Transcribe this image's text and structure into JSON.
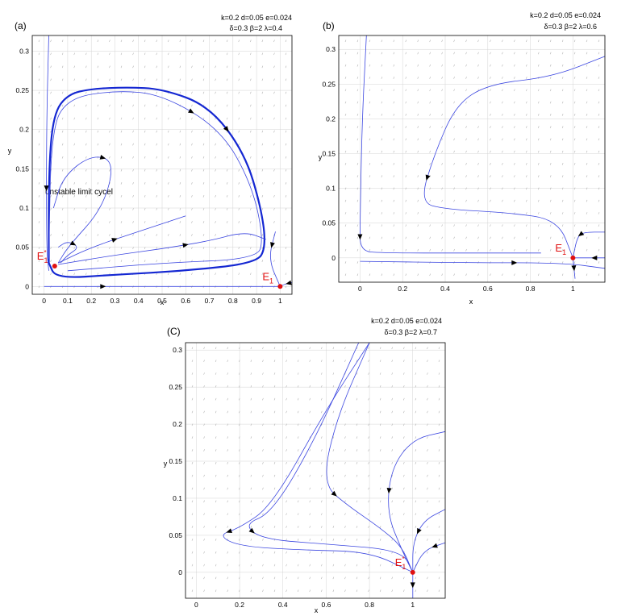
{
  "chart_data": [
    {
      "type": "line",
      "panel": "(a)",
      "params_line1": "k=0.2  d=0.05  e=0.024",
      "params_line2": "δ=0.3  β=2  λ=0.4",
      "xlabel": "x",
      "ylabel": "y",
      "xlim": [
        -0.05,
        1.05
      ],
      "ylim": [
        -0.01,
        0.32
      ],
      "xticks": [
        "0",
        "0.1",
        "0.2",
        "0.3",
        "0.4",
        "0.5",
        "0.6",
        "0.7",
        "0.8",
        "0.9",
        "1"
      ],
      "yticks": [
        "0",
        "0.05",
        "0.1",
        "0.15",
        "0.2",
        "0.25",
        "0.3"
      ],
      "annotation": "unstable limit cycel",
      "equilibria": [
        {
          "label": "E",
          "sub": "1",
          "sup": "",
          "x": 1.0,
          "y": 0.0
        },
        {
          "label": "E",
          "sub": "1",
          "sup": "*",
          "x": 0.045,
          "y": 0.026
        }
      ],
      "series": [
        {
          "name": "outer-limit-cycle",
          "bold": true,
          "points": [
            [
              0.02,
              0.03
            ],
            [
              0.02,
              0.15
            ],
            [
              0.04,
              0.22
            ],
            [
              0.1,
              0.245
            ],
            [
              0.2,
              0.252
            ],
            [
              0.35,
              0.254
            ],
            [
              0.5,
              0.252
            ],
            [
              0.7,
              0.23
            ],
            [
              0.85,
              0.17
            ],
            [
              0.92,
              0.1
            ],
            [
              0.94,
              0.05
            ],
            [
              0.9,
              0.03
            ],
            [
              0.6,
              0.02
            ],
            [
              0.3,
              0.015
            ],
            [
              0.05,
              0.01
            ],
            [
              0.02,
              0.03
            ]
          ]
        },
        {
          "name": "traj-inner-1",
          "bold": false,
          "points": [
            [
              0.02,
              0.035
            ],
            [
              0.03,
              0.2
            ],
            [
              0.1,
              0.24
            ],
            [
              0.3,
              0.25
            ],
            [
              0.5,
              0.245
            ],
            [
              0.75,
              0.2
            ],
            [
              0.88,
              0.13
            ],
            [
              0.93,
              0.06
            ],
            [
              0.9,
              0.035
            ],
            [
              0.5,
              0.03
            ],
            [
              0.1,
              0.02
            ]
          ]
        },
        {
          "name": "traj-inner-2",
          "bold": false,
          "points": [
            [
              0.04,
              0.1
            ],
            [
              0.08,
              0.14
            ],
            [
              0.2,
              0.168
            ],
            [
              0.3,
              0.16
            ],
            [
              0.25,
              0.1
            ],
            [
              0.1,
              0.05
            ],
            [
              0.06,
              0.03
            ]
          ]
        },
        {
          "name": "traj-inner-3",
          "bold": false,
          "points": [
            [
              0.06,
              0.03
            ],
            [
              0.2,
              0.05
            ],
            [
              0.4,
              0.07
            ],
            [
              0.6,
              0.09
            ]
          ]
        },
        {
          "name": "traj-inner-4",
          "bold": false,
          "points": [
            [
              0.06,
              0.028
            ],
            [
              0.3,
              0.04
            ],
            [
              0.5,
              0.048
            ],
            [
              0.7,
              0.058
            ],
            [
              0.85,
              0.07
            ],
            [
              0.94,
              0.06
            ]
          ]
        },
        {
          "name": "traj-inner-5",
          "bold": false,
          "points": [
            [
              0.06,
              0.05
            ],
            [
              0.1,
              0.058
            ],
            [
              0.15,
              0.05
            ],
            [
              0.1,
              0.04
            ],
            [
              0.07,
              0.03
            ]
          ]
        },
        {
          "name": "traj-axis",
          "bold": false,
          "points": [
            [
              0.0,
              0.0
            ],
            [
              0.5,
              0.0
            ],
            [
              1.0,
              0.0
            ]
          ]
        },
        {
          "name": "traj-from-left-top",
          "bold": false,
          "points": [
            [
              0.02,
              0.32
            ],
            [
              0.01,
              0.2
            ],
            [
              0.01,
              0.05
            ],
            [
              0.02,
              0.02
            ]
          ]
        },
        {
          "name": "traj-right-1",
          "bold": false,
          "points": [
            [
              0.98,
              0.07
            ],
            [
              0.95,
              0.035
            ],
            [
              1.0,
              0.0
            ]
          ]
        },
        {
          "name": "traj-right-2",
          "bold": false,
          "points": [
            [
              1.05,
              0.005
            ],
            [
              1.02,
              0.003
            ],
            [
              1.0,
              0.0
            ]
          ]
        }
      ]
    },
    {
      "type": "line",
      "panel": "(b)",
      "params_line1": "k=0.2  d=0.05  e=0.024",
      "params_line2": "δ=0.3  β=2  λ=0.6",
      "xlabel": "x",
      "ylabel": "y",
      "xlim": [
        -0.1,
        1.15
      ],
      "ylim": [
        -0.035,
        0.32
      ],
      "xticks": [
        "0",
        "0.2",
        "0.4",
        "0.6",
        "0.8",
        "1"
      ],
      "yticks": [
        "0",
        "0.05",
        "0.1",
        "0.15",
        "0.2",
        "0.25",
        "0.3"
      ],
      "equilibria": [
        {
          "label": "E",
          "sub": "1",
          "sup": "",
          "x": 1.0,
          "y": 0.0
        }
      ],
      "series": [
        {
          "name": "traj-1",
          "bold": false,
          "points": [
            [
              1.15,
              0.29
            ],
            [
              0.9,
              0.26
            ],
            [
              0.6,
              0.25
            ],
            [
              0.45,
              0.22
            ],
            [
              0.35,
              0.15
            ],
            [
              0.28,
              0.08
            ],
            [
              0.4,
              0.07
            ],
            [
              0.7,
              0.065
            ],
            [
              0.93,
              0.055
            ],
            [
              1.0,
              0.0
            ]
          ]
        },
        {
          "name": "traj-2",
          "bold": false,
          "points": [
            [
              0.03,
              0.32
            ],
            [
              0.01,
              0.2
            ],
            [
              0.0,
              0.05
            ],
            [
              0.0,
              0.01
            ],
            [
              0.1,
              0.007
            ],
            [
              0.5,
              0.007
            ],
            [
              0.85,
              0.007
            ]
          ]
        },
        {
          "name": "traj-3",
          "bold": false,
          "points": [
            [
              0.0,
              -0.005
            ],
            [
              0.5,
              -0.007
            ],
            [
              0.95,
              -0.007
            ],
            [
              1.15,
              -0.015
            ]
          ]
        },
        {
          "name": "traj-4",
          "bold": false,
          "points": [
            [
              1.15,
              0.037
            ],
            [
              1.05,
              0.037
            ],
            [
              1.02,
              0.03
            ],
            [
              1.0,
              0.0
            ]
          ]
        },
        {
          "name": "traj-5",
          "bold": false,
          "points": [
            [
              1.15,
              0.0
            ],
            [
              1.05,
              0.0
            ],
            [
              1.0,
              0.0
            ]
          ]
        },
        {
          "name": "traj-6",
          "bold": false,
          "points": [
            [
              1.0,
              0.0
            ],
            [
              1.01,
              -0.03
            ]
          ]
        }
      ]
    },
    {
      "type": "line",
      "panel": "(C)",
      "params_line1": "k=0.2  d=0.05  e=0.024",
      "params_line2": "δ=0.3  β=2  λ=0.7",
      "xlabel": "x",
      "ylabel": "y",
      "xlim": [
        -0.05,
        1.15
      ],
      "ylim": [
        -0.035,
        0.31
      ],
      "xticks": [
        "0",
        "0.2",
        "0.4",
        "0.6",
        "0.8",
        "1"
      ],
      "yticks": [
        "0",
        "0.05",
        "0.1",
        "0.15",
        "0.2",
        "0.25",
        "0.3"
      ],
      "equilibria": [
        {
          "label": "E",
          "sub": "1",
          "sup": "*",
          "x": 1.0,
          "y": 0.0
        }
      ],
      "series": [
        {
          "name": "traj-1",
          "bold": false,
          "points": [
            [
              0.8,
              0.31
            ],
            [
              0.6,
              0.22
            ],
            [
              0.35,
              0.09
            ],
            [
              0.2,
              0.06
            ],
            [
              0.1,
              0.05
            ],
            [
              0.2,
              0.035
            ],
            [
              0.5,
              0.03
            ],
            [
              0.8,
              0.028
            ],
            [
              1.0,
              0.0
            ]
          ]
        },
        {
          "name": "traj-2",
          "bold": false,
          "points": [
            [
              0.75,
              0.31
            ],
            [
              0.55,
              0.18
            ],
            [
              0.35,
              0.08
            ],
            [
              0.22,
              0.065
            ],
            [
              0.3,
              0.045
            ],
            [
              0.6,
              0.038
            ],
            [
              0.95,
              0.03
            ],
            [
              1.0,
              0.0
            ]
          ]
        },
        {
          "name": "traj-3",
          "bold": false,
          "points": [
            [
              0.8,
              0.31
            ],
            [
              0.65,
              0.21
            ],
            [
              0.58,
              0.12
            ],
            [
              0.7,
              0.09
            ],
            [
              0.85,
              0.06
            ],
            [
              0.95,
              0.035
            ],
            [
              1.0,
              0.0
            ]
          ]
        },
        {
          "name": "traj-4",
          "bold": false,
          "points": [
            [
              1.15,
              0.19
            ],
            [
              1.0,
              0.18
            ],
            [
              0.9,
              0.14
            ],
            [
              0.88,
              0.08
            ],
            [
              0.95,
              0.03
            ],
            [
              1.0,
              0.0
            ]
          ]
        },
        {
          "name": "traj-5",
          "bold": false,
          "points": [
            [
              1.15,
              0.085
            ],
            [
              1.05,
              0.07
            ],
            [
              1.0,
              0.04
            ],
            [
              1.0,
              0.0
            ]
          ]
        },
        {
          "name": "traj-6",
          "bold": false,
          "points": [
            [
              1.15,
              0.04
            ],
            [
              1.05,
              0.03
            ],
            [
              1.0,
              0.0
            ]
          ]
        },
        {
          "name": "traj-7",
          "bold": false,
          "points": [
            [
              1.0,
              0.0
            ],
            [
              1.0,
              -0.035
            ]
          ]
        }
      ]
    }
  ]
}
